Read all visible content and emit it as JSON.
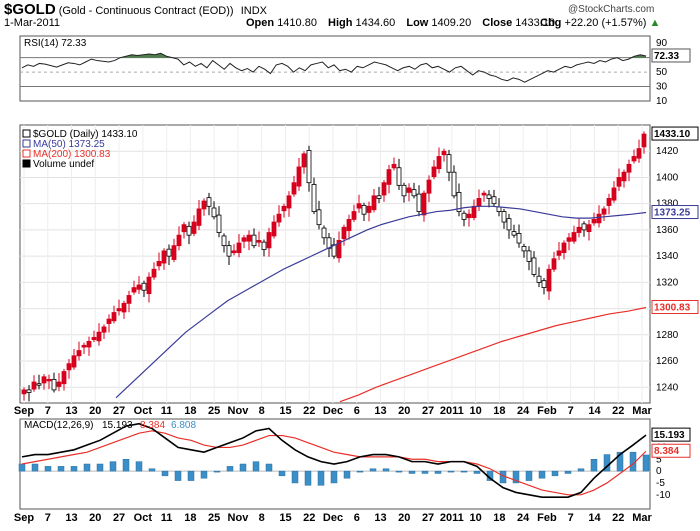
{
  "header": {
    "symbol": "$GOLD",
    "name": "(Gold - Continuous Contract (EOD))",
    "exchange": "INDX",
    "date": "1-Mar-2011",
    "open_label": "Open",
    "open": "1410.80",
    "high_label": "High",
    "high": "1434.60",
    "low_label": "Low",
    "low": "1409.20",
    "close_label": "Close",
    "close": "1433.10",
    "chg_label": "Chg",
    "chg": "+22.20 (+1.57%)",
    "up_icon": "triangle-up-icon",
    "copyright": "@StockCharts.com"
  },
  "colors": {
    "up": "#d7001d",
    "down": "#000000",
    "ma50": "#3a3a9a",
    "ma200": "#e8302a",
    "rsi_fill": "#4e7d4e",
    "macd_line": "#000000",
    "signal": "#e8302a",
    "hist": "#3a8fc9"
  },
  "chart_data": [
    {
      "type": "line",
      "panel": "RSI",
      "legend": "RSI(14) 72.33",
      "y_ticks": [
        90,
        70,
        50,
        30,
        10
      ],
      "ylim": [
        10,
        100
      ],
      "overbought": 70,
      "oversold": 30,
      "current_tag": "72.33",
      "values": [
        56,
        60,
        58,
        62,
        61,
        59,
        57,
        60,
        63,
        62,
        60,
        64,
        68,
        66,
        65,
        64,
        66,
        70,
        72,
        74,
        73,
        74,
        75,
        74,
        76,
        72,
        70,
        68,
        60,
        64,
        58,
        62,
        56,
        66,
        60,
        54,
        62,
        56,
        52,
        55,
        50,
        58,
        54,
        48,
        60,
        62,
        58,
        50,
        56,
        52,
        60,
        62,
        64,
        56,
        60,
        52,
        54,
        50,
        58,
        56,
        60,
        64,
        62,
        60,
        56,
        52,
        56,
        58,
        54,
        60,
        62,
        56,
        58,
        54,
        50,
        56,
        58,
        52,
        46,
        52,
        50,
        46,
        44,
        40,
        38,
        42,
        40,
        36,
        40,
        44,
        48,
        52,
        50,
        54,
        58,
        56,
        60,
        62,
        64,
        62,
        66,
        64,
        68,
        70,
        66,
        68,
        72,
        74,
        72.33
      ]
    },
    {
      "type": "candlestick",
      "panel": "price",
      "legend": [
        "$GOLD (Daily) 1433.10",
        "MA(50) 1373.25",
        "MA(200) 1300.83",
        "Volume undef"
      ],
      "y_ticks": [
        1240,
        1260,
        1280,
        1300,
        1320,
        1340,
        1360,
        1380,
        1400,
        1420
      ],
      "ylim": [
        1228,
        1440
      ],
      "x_labels": [
        "Sep",
        "7",
        "13",
        "20",
        "27",
        "Oct",
        "11",
        "18",
        "25",
        "Nov",
        "8",
        "15",
        "22",
        "Dec",
        "6",
        "13",
        "20",
        "27",
        "2011",
        "10",
        "18",
        "24",
        "Feb",
        "7",
        "14",
        "22",
        "Mar"
      ],
      "tags": {
        "close": "1433.10",
        "ma50": "1373.25",
        "ma200": "1300.83"
      },
      "closes": [
        1238,
        1236,
        1244,
        1242,
        1248,
        1246,
        1238,
        1244,
        1252,
        1258,
        1264,
        1268,
        1272,
        1275,
        1278,
        1282,
        1286,
        1292,
        1297,
        1300,
        1304,
        1310,
        1316,
        1318,
        1314,
        1324,
        1330,
        1336,
        1344,
        1340,
        1348,
        1356,
        1364,
        1356,
        1366,
        1376,
        1382,
        1378,
        1370,
        1358,
        1348,
        1340,
        1344,
        1350,
        1354,
        1356,
        1348,
        1352,
        1345,
        1358,
        1366,
        1372,
        1378,
        1386,
        1396,
        1408,
        1418,
        1396,
        1374,
        1364,
        1354,
        1346,
        1340,
        1352,
        1362,
        1368,
        1374,
        1380,
        1372,
        1378,
        1386,
        1384,
        1396,
        1406,
        1410,
        1394,
        1386,
        1392,
        1386,
        1374,
        1388,
        1398,
        1408,
        1416,
        1420,
        1404,
        1386,
        1374,
        1368,
        1372,
        1378,
        1384,
        1388,
        1384,
        1380,
        1374,
        1366,
        1360,
        1356,
        1350,
        1344,
        1336,
        1326,
        1320,
        1316,
        1330,
        1338,
        1344,
        1350,
        1354,
        1358,
        1362,
        1360,
        1364,
        1368,
        1372,
        1376,
        1384,
        1392,
        1400,
        1404,
        1410,
        1416,
        1422,
        1433.1
      ],
      "ma50": [
        1232,
        1242,
        1252,
        1262,
        1272,
        1282,
        1290,
        1298,
        1306,
        1312,
        1318,
        1324,
        1330,
        1335,
        1340,
        1345,
        1350,
        1355,
        1360,
        1364,
        1367,
        1370,
        1372,
        1374,
        1375,
        1377,
        1378,
        1378,
        1377,
        1376,
        1374,
        1372,
        1370,
        1369,
        1369,
        1370,
        1371,
        1372,
        1373.25
      ],
      "ma200": [
        1229,
        1234,
        1240,
        1245,
        1250,
        1255,
        1260,
        1265,
        1270,
        1275,
        1279,
        1283,
        1287,
        1290,
        1293,
        1296,
        1298,
        1300.83
      ]
    },
    {
      "type": "line",
      "panel": "MACD",
      "legend": [
        "MACD(12,26,9)",
        "15.193",
        "8.384",
        "6.808"
      ],
      "y_ticks": [
        15,
        10,
        5,
        0,
        -5,
        -10
      ],
      "ylim": [
        -16,
        22
      ],
      "tags": {
        "macd": "15.193",
        "signal": "8.384"
      },
      "x_labels": [
        "Sep",
        "7",
        "13",
        "20",
        "27",
        "Oct",
        "11",
        "18",
        "25",
        "Nov",
        "8",
        "15",
        "22",
        "Dec",
        "6",
        "13",
        "20",
        "27",
        "2011",
        "10",
        "18",
        "24",
        "Feb",
        "7",
        "14",
        "22",
        "Mar"
      ],
      "macd": [
        6,
        7,
        7,
        8,
        9,
        11,
        13,
        16,
        19,
        20,
        18,
        14,
        10,
        9,
        8,
        10,
        12,
        14,
        17,
        18,
        13,
        9,
        6,
        4,
        3,
        4,
        6,
        7,
        7,
        6,
        4,
        4,
        3,
        4,
        4,
        2,
        -3,
        -7,
        -9,
        -10,
        -11,
        -11,
        -11,
        -9,
        -3,
        2,
        7,
        11,
        15.193
      ],
      "signal": [
        3,
        4,
        5,
        6,
        7,
        8,
        10,
        12,
        14,
        16,
        17,
        16,
        14,
        13,
        11,
        10,
        10,
        11,
        13,
        15,
        15,
        14,
        12,
        10,
        8,
        7,
        6,
        6,
        6,
        6,
        5,
        5,
        4,
        4,
        4,
        3,
        1,
        -2,
        -4,
        -6,
        -8,
        -9,
        -10,
        -10,
        -8,
        -5,
        -1,
        3,
        8.384
      ]
    }
  ]
}
